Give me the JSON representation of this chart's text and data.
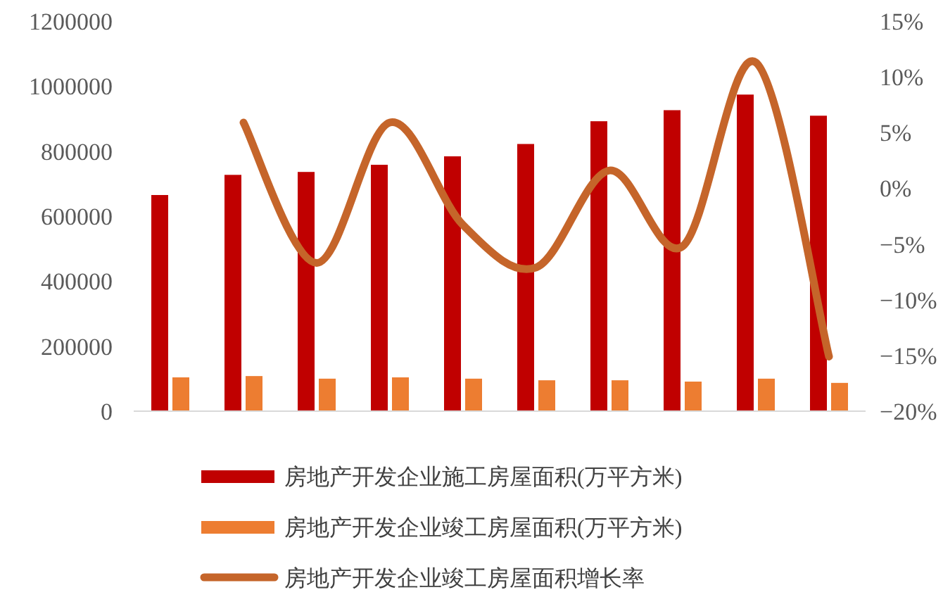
{
  "chart_data": {
    "type": "bar",
    "categories": [
      null,
      null,
      null,
      null,
      null,
      null,
      null,
      null,
      null,
      null
    ],
    "series": [
      {
        "name": "房地产开发企业施工房屋面积(万平方米)",
        "color": "#c00000",
        "values": [
          665000,
          727000,
          736000,
          758000,
          784000,
          822000,
          892000,
          926000,
          974000,
          909000
        ]
      },
      {
        "name": "房地产开发企业竣工房屋面积(万平方米)",
        "color": "#ed7d31",
        "values": [
          104000,
          108000,
          100000,
          104000,
          100000,
          95000,
          95000,
          91000,
          100000,
          87000
        ]
      },
      {
        "name": "房地产开发企业竣工房屋面积增长率",
        "color": "#c5652a",
        "type": "line",
        "axis": "y2",
        "values": [
          null,
          5.9,
          -6.7,
          5.9,
          -3.3,
          -7.1,
          1.6,
          -5.2,
          11.3,
          -15.1
        ]
      }
    ],
    "ylim": [
      0,
      1200000
    ],
    "yticks": [
      0,
      200000,
      400000,
      600000,
      800000,
      1000000,
      1200000
    ],
    "y2lim": [
      -20,
      15
    ],
    "y2ticks": [
      {
        "value": -20,
        "label": "−20%"
      },
      {
        "value": -15,
        "label": "−15%"
      },
      {
        "value": -10,
        "label": "−10%"
      },
      {
        "value": -5,
        "label": "−5%"
      },
      {
        "value": 0,
        "label": "0%"
      },
      {
        "value": 5,
        "label": "5%"
      },
      {
        "value": 10,
        "label": "10%"
      },
      {
        "value": 15,
        "label": "15%"
      }
    ],
    "grid": false,
    "legend": "bottom",
    "line_style": "solid",
    "marker": "none"
  }
}
